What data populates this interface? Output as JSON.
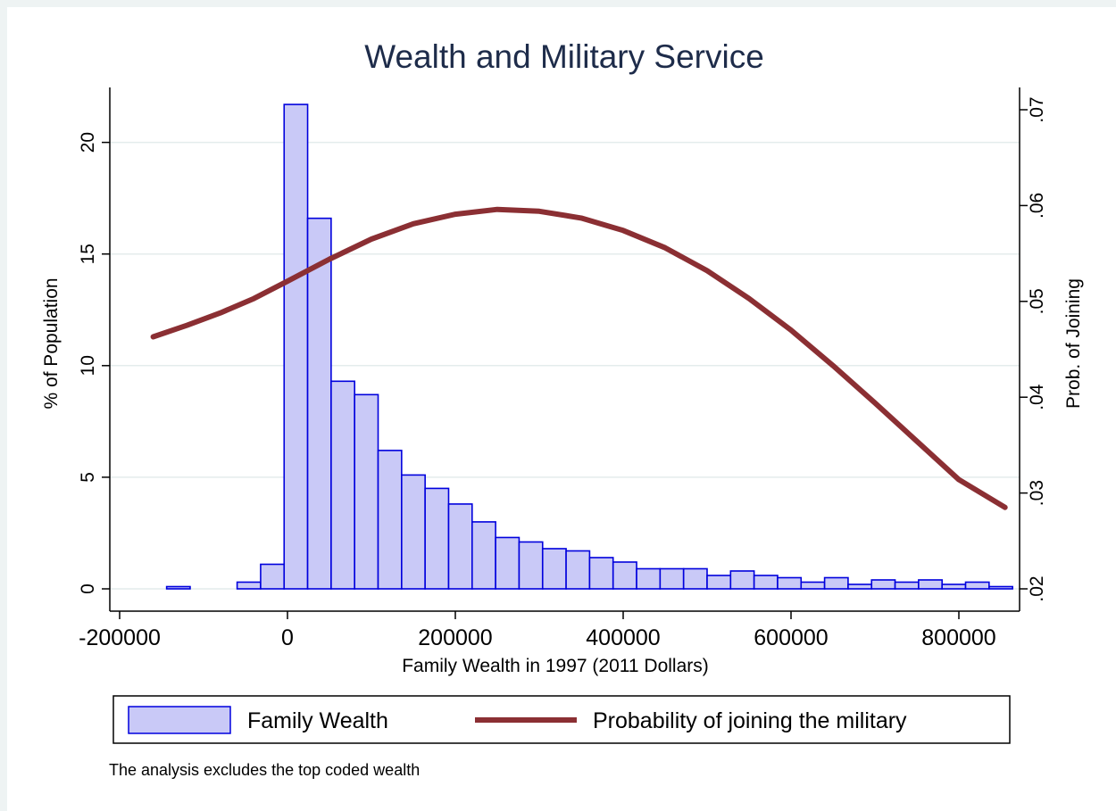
{
  "chart_data": {
    "type": "bar",
    "title": "Wealth and Military Service",
    "xlabel": "Family Wealth in 1997 (2011 Dollars)",
    "ylabel_left": "% of Population",
    "ylabel_right": "Prob. of Joining",
    "note": "The analysis excludes the top coded wealth",
    "xlim": [
      -200000,
      860000
    ],
    "ylim_left": [
      0,
      22
    ],
    "ylim_right": [
      0.02,
      0.07
    ],
    "x_ticks": [
      -200000,
      0,
      200000,
      400000,
      600000,
      800000
    ],
    "x_tick_labels": [
      "-200000",
      "0",
      "200000",
      "400000",
      "600000",
      "800000"
    ],
    "y_left_ticks": [
      0,
      5,
      10,
      15,
      20
    ],
    "y_left_tick_labels": [
      "0",
      "5",
      "10",
      "15",
      "20"
    ],
    "y_right_ticks": [
      0.02,
      0.03,
      0.04,
      0.05,
      0.06,
      0.07
    ],
    "y_right_tick_labels": [
      ".02",
      ".03",
      ".04",
      ".05",
      ".06",
      ".07"
    ],
    "grid": true,
    "legend_position": "bottom",
    "colors": {
      "bar_fill": "#c9c9f7",
      "bar_stroke": "#0000dd",
      "line": "#8b2f33",
      "grid": "#e4ecec",
      "background_edge": "#eef3f3"
    },
    "series": [
      {
        "name": "Family Wealth",
        "kind": "histogram",
        "bin_width": 28000,
        "bins": [
          {
            "x": -144000,
            "value": 0.1
          },
          {
            "x": -116000,
            "value": 0.0
          },
          {
            "x": -88000,
            "value": 0.0
          },
          {
            "x": -60000,
            "value": 0.3
          },
          {
            "x": -32000,
            "value": 1.1
          },
          {
            "x": -4000,
            "value": 21.7
          },
          {
            "x": 24000,
            "value": 16.6
          },
          {
            "x": 52000,
            "value": 9.3
          },
          {
            "x": 80000,
            "value": 8.7
          },
          {
            "x": 108000,
            "value": 6.2
          },
          {
            "x": 136000,
            "value": 5.1
          },
          {
            "x": 164000,
            "value": 4.5
          },
          {
            "x": 192000,
            "value": 3.8
          },
          {
            "x": 220000,
            "value": 3.0
          },
          {
            "x": 248000,
            "value": 2.3
          },
          {
            "x": 276000,
            "value": 2.1
          },
          {
            "x": 304000,
            "value": 1.8
          },
          {
            "x": 332000,
            "value": 1.7
          },
          {
            "x": 360000,
            "value": 1.4
          },
          {
            "x": 388000,
            "value": 1.2
          },
          {
            "x": 416000,
            "value": 0.9
          },
          {
            "x": 444000,
            "value": 0.9
          },
          {
            "x": 472000,
            "value": 0.9
          },
          {
            "x": 500000,
            "value": 0.6
          },
          {
            "x": 528000,
            "value": 0.8
          },
          {
            "x": 556000,
            "value": 0.6
          },
          {
            "x": 584000,
            "value": 0.5
          },
          {
            "x": 612000,
            "value": 0.3
          },
          {
            "x": 640000,
            "value": 0.5
          },
          {
            "x": 668000,
            "value": 0.2
          },
          {
            "x": 696000,
            "value": 0.4
          },
          {
            "x": 724000,
            "value": 0.3
          },
          {
            "x": 752000,
            "value": 0.4
          },
          {
            "x": 780000,
            "value": 0.2
          },
          {
            "x": 808000,
            "value": 0.3
          },
          {
            "x": 836000,
            "value": 0.1
          }
        ]
      },
      {
        "name": "Probability of joining the military",
        "kind": "line",
        "x": [
          -160000,
          -120000,
          -80000,
          -40000,
          0,
          50000,
          100000,
          150000,
          200000,
          250000,
          300000,
          350000,
          400000,
          450000,
          500000,
          550000,
          600000,
          650000,
          700000,
          750000,
          800000,
          855000
        ],
        "y": [
          0.0463,
          0.0475,
          0.0488,
          0.0503,
          0.0521,
          0.0544,
          0.0565,
          0.0581,
          0.0591,
          0.0596,
          0.0594,
          0.0587,
          0.0574,
          0.0556,
          0.0532,
          0.0503,
          0.047,
          0.0433,
          0.0394,
          0.0354,
          0.0314,
          0.0285
        ]
      }
    ]
  }
}
